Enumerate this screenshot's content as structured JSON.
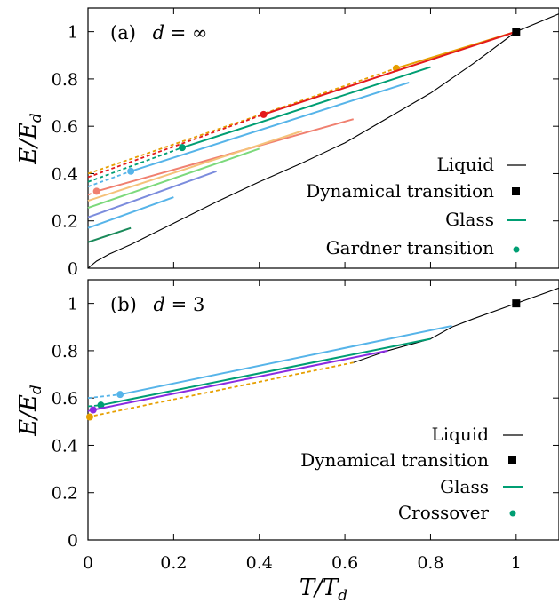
{
  "colors": {
    "liquid": "#000000",
    "orange": "#e69f00",
    "red": "#e41a1c",
    "teal": "#009e73",
    "skyblue": "#56b4e9",
    "purple": "#8a2be2",
    "salmon": "#f08070",
    "pale_orange": "#f5c27a",
    "light_green": "#7cd97c",
    "periwinkle": "#7b8cdd",
    "dark_green": "#1a8a5a"
  },
  "chart_data": [
    {
      "type": "line",
      "panel_label": "(a)",
      "panel_condition": "d = ∞",
      "xlabel": "T/T_d",
      "ylabel": "E/E_d",
      "xlim": [
        0,
        1.1
      ],
      "ylim": [
        0,
        1.1
      ],
      "xticks": [
        0,
        0.2,
        0.4,
        0.6,
        0.8,
        1
      ],
      "yticks": [
        "0",
        "0.2",
        "0.4",
        "0.6",
        "0.8",
        "1"
      ],
      "legend": {
        "position": "right",
        "entries": [
          {
            "label": "Liquid",
            "marker": "line",
            "color": "#000000"
          },
          {
            "label": "Dynamical transition",
            "marker": "square",
            "color": "#000000"
          },
          {
            "label": "Glass",
            "marker": "line",
            "color": "#009e73"
          },
          {
            "label": "Gardner transition",
            "marker": "dot",
            "color": "#009e73"
          }
        ]
      },
      "liquid": {
        "color": "#000000",
        "x": [
          0,
          0.02,
          0.05,
          0.1,
          0.15,
          0.2,
          0.3,
          0.4,
          0.5,
          0.6,
          0.7,
          0.8,
          0.9,
          1.0,
          1.1
        ],
        "y": [
          0,
          0.03,
          0.06,
          0.1,
          0.145,
          0.19,
          0.28,
          0.365,
          0.445,
          0.53,
          0.635,
          0.74,
          0.865,
          1.0,
          1.075
        ]
      },
      "dynamical_transition": {
        "x": 1.0,
        "y": 1.0,
        "color": "#000000"
      },
      "glass_curves": [
        {
          "color": "#e69f00",
          "x": [
            0,
            0.72,
            1.0
          ],
          "y": [
            0.4,
            0.845,
            1.0
          ],
          "gardner_x": 0.72,
          "gardner_y": 0.845,
          "show_point": true
        },
        {
          "color": "#e41a1c",
          "x": [
            0,
            0.41,
            1.0
          ],
          "y": [
            0.385,
            0.65,
            1.0
          ],
          "gardner_x": 0.41,
          "gardner_y": 0.65,
          "show_point": true
        },
        {
          "color": "#009e73",
          "x": [
            0,
            0.22,
            0.8
          ],
          "y": [
            0.365,
            0.51,
            0.85
          ],
          "gardner_x": 0.22,
          "gardner_y": 0.51,
          "show_point": true
        },
        {
          "color": "#56b4e9",
          "x": [
            0,
            0.1,
            0.75
          ],
          "y": [
            0.345,
            0.41,
            0.785
          ],
          "gardner_x": 0.1,
          "gardner_y": 0.41,
          "show_point": true
        },
        {
          "color": "#f08070",
          "x": [
            0,
            0.02,
            0.62
          ],
          "y": [
            0.31,
            0.325,
            0.63
          ],
          "gardner_x": 0.02,
          "gardner_y": 0.325,
          "show_point": true
        },
        {
          "color": "#f5c27a",
          "x": [
            0,
            0.5
          ],
          "y": [
            0.285,
            0.58
          ],
          "gardner_x": 0,
          "gardner_y": 0.285,
          "show_point": false
        },
        {
          "color": "#7cd97c",
          "x": [
            0,
            0.4
          ],
          "y": [
            0.255,
            0.505
          ],
          "gardner_x": 0,
          "gardner_y": 0.255,
          "show_point": false
        },
        {
          "color": "#7b8cdd",
          "x": [
            0,
            0.3
          ],
          "y": [
            0.215,
            0.41
          ],
          "gardner_x": 0,
          "gardner_y": 0.215,
          "show_point": false
        },
        {
          "color": "#56b4e9",
          "x": [
            0,
            0.2
          ],
          "y": [
            0.17,
            0.3
          ],
          "gardner_x": 0,
          "gardner_y": 0.17,
          "show_point": false
        },
        {
          "color": "#1a8a5a",
          "x": [
            0,
            0.1
          ],
          "y": [
            0.11,
            0.17
          ],
          "gardner_x": 0,
          "gardner_y": 0.11,
          "show_point": false
        }
      ]
    },
    {
      "type": "line",
      "panel_label": "(b)",
      "panel_condition": "d = 3",
      "xlabel": "T/T_d",
      "ylabel": "E/E_d",
      "xlim": [
        0,
        1.1
      ],
      "ylim": [
        0,
        1.1
      ],
      "xticks": [
        0,
        0.2,
        0.4,
        0.6,
        0.8,
        1
      ],
      "yticks": [
        "0",
        "0.2",
        "0.4",
        "0.6",
        "0.8",
        "1"
      ],
      "legend": {
        "position": "right",
        "entries": [
          {
            "label": "Liquid",
            "marker": "line",
            "color": "#000000"
          },
          {
            "label": "Dynamical transition",
            "marker": "square",
            "color": "#000000"
          },
          {
            "label": "Glass",
            "marker": "line",
            "color": "#009e73"
          },
          {
            "label": "Crossover",
            "marker": "dot",
            "color": "#009e73"
          }
        ]
      },
      "liquid": {
        "color": "#000000",
        "x": [
          0.62,
          0.7,
          0.8,
          0.85,
          0.9,
          1.0,
          1.1
        ],
        "y": [
          0.75,
          0.8,
          0.85,
          0.9,
          0.935,
          1.0,
          1.065
        ]
      },
      "dynamical_transition": {
        "x": 1.0,
        "y": 1.0,
        "color": "#000000"
      },
      "glass_curves": [
        {
          "color": "#56b4e9",
          "x": [
            0,
            0.075,
            0.85
          ],
          "y": [
            0.6,
            0.615,
            0.905
          ],
          "crossover_x": 0.075,
          "crossover_y": 0.615,
          "show_point": true
        },
        {
          "color": "#009e73",
          "x": [
            0,
            0.03,
            0.8
          ],
          "y": [
            0.565,
            0.57,
            0.85
          ],
          "crossover_x": 0.03,
          "crossover_y": 0.57,
          "show_point": true
        },
        {
          "color": "#8a2be2",
          "x": [
            0,
            0.012,
            0.7
          ],
          "y": [
            0.545,
            0.55,
            0.8
          ],
          "crossover_x": 0.012,
          "crossover_y": 0.55,
          "show_point": true
        },
        {
          "color": "#e69f00",
          "x": [
            0,
            0.62
          ],
          "y": [
            0.52,
            0.75
          ],
          "crossover_x": 0.004,
          "crossover_y": 0.52,
          "show_point": true
        }
      ]
    }
  ],
  "axes": {
    "ylabel_top": "E/E",
    "ylabel_bottom": "E/E",
    "ylabel_sub": "d",
    "xlabel_main": "T/T",
    "xlabel_sub": "d"
  },
  "panels": {
    "a": {
      "label": "(a)",
      "var": "d",
      "eq": " = ∞"
    },
    "b": {
      "label": "(b)",
      "var": "d",
      "eq": " = 3"
    }
  },
  "legend_top": {
    "items": [
      "Liquid",
      "Dynamical transition",
      "Glass",
      "Gardner transition"
    ]
  },
  "legend_bottom": {
    "items": [
      "Liquid",
      "Dynamical transition",
      "Glass",
      "Crossover"
    ]
  },
  "xtick_labels": [
    "0",
    "0.2",
    "0.4",
    "0.6",
    "0.8",
    "1"
  ],
  "ytick_labels": [
    "0",
    "0.2",
    "0.4",
    "0.6",
    "0.8",
    "1"
  ]
}
